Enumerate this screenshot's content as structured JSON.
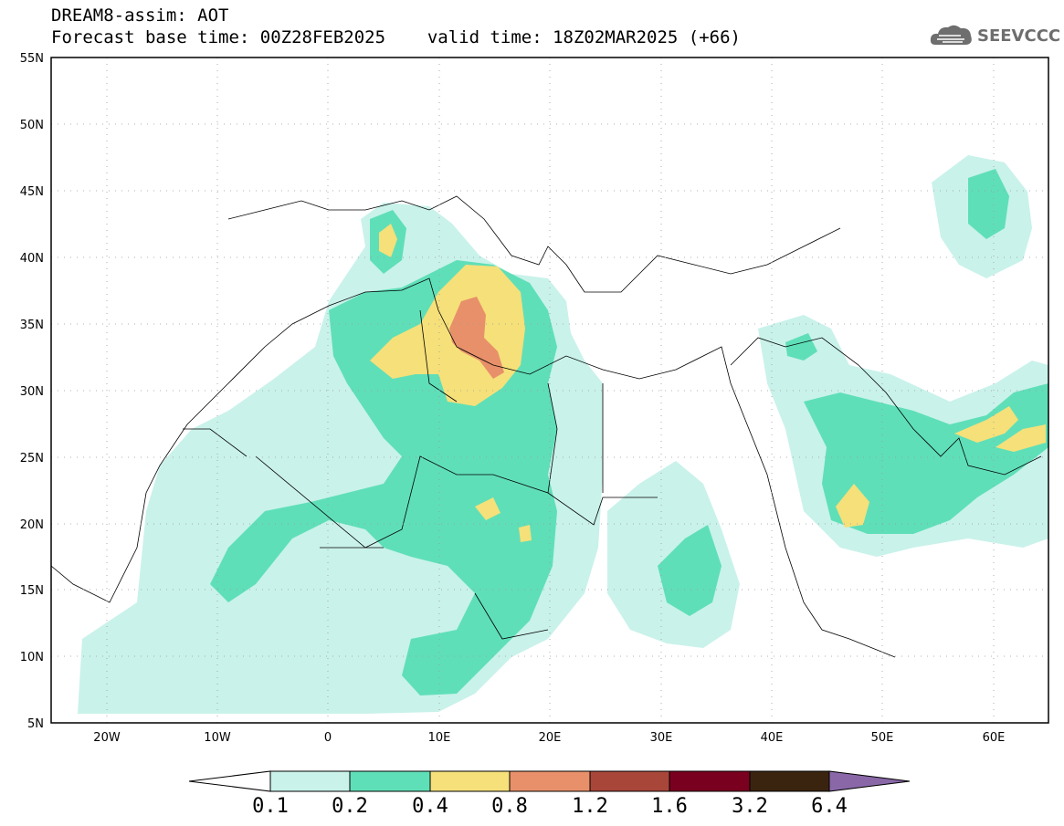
{
  "header": {
    "title": "DREAM8-assim: AOT",
    "base_time_label": "Forecast base time: 00Z28FEB2025",
    "valid_time_label": "valid time: 18Z02MAR2025 (+66)"
  },
  "logo": {
    "text": "SEEVCCC",
    "icon": "cloud-logo-icon"
  },
  "axes": {
    "lat_labels": [
      "55N",
      "50N",
      "45N",
      "40N",
      "35N",
      "30N",
      "25N",
      "20N",
      "15N",
      "10N",
      "5N"
    ],
    "lon_labels": [
      "20W",
      "10W",
      "0",
      "10E",
      "20E",
      "30E",
      "40E",
      "50E",
      "60E"
    ],
    "lat_range": [
      5,
      55
    ],
    "lon_range": [
      -25,
      65
    ]
  },
  "colorbar": {
    "labels": [
      "0.1",
      "0.2",
      "0.4",
      "0.8",
      "1.2",
      "1.6",
      "3.2",
      "6.4"
    ],
    "colors": [
      "#ffffff",
      "#c9f2ea",
      "#5fdfb8",
      "#f5e07a",
      "#e8906a",
      "#a9463a",
      "#7a0020",
      "#3a2410",
      "#8a68a8"
    ]
  }
}
